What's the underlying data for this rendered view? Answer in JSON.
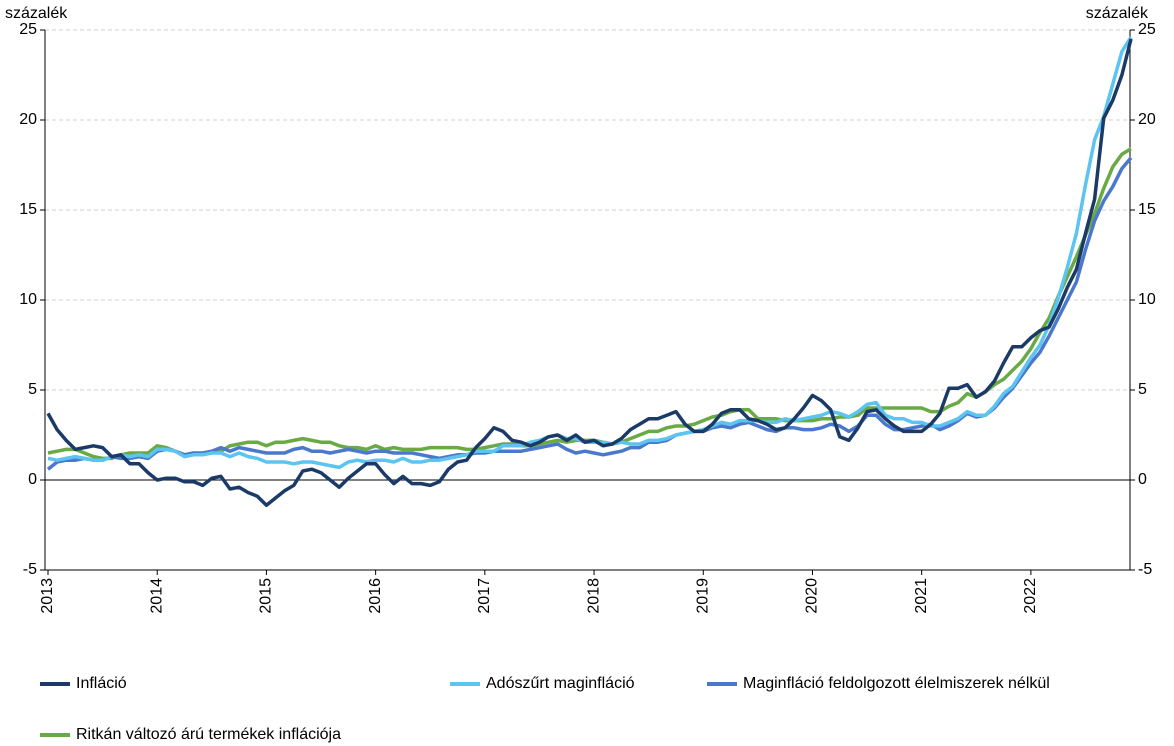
{
  "chart_data": {
    "type": "line",
    "ylabel": "százalék",
    "y2label": "százalék",
    "categories": [
      "2013",
      null,
      null,
      null,
      null,
      null,
      null,
      null,
      null,
      null,
      null,
      null,
      "2014",
      null,
      null,
      null,
      null,
      null,
      null,
      null,
      null,
      null,
      null,
      null,
      "2015",
      null,
      null,
      null,
      null,
      null,
      null,
      null,
      null,
      null,
      null,
      null,
      "2016",
      null,
      null,
      null,
      null,
      null,
      null,
      null,
      null,
      null,
      null,
      null,
      "2017",
      null,
      null,
      null,
      null,
      null,
      null,
      null,
      null,
      null,
      null,
      null,
      "2018",
      null,
      null,
      null,
      null,
      null,
      null,
      null,
      null,
      null,
      null,
      null,
      "2019",
      null,
      null,
      null,
      null,
      null,
      null,
      null,
      null,
      null,
      null,
      null,
      "2020",
      null,
      null,
      null,
      null,
      null,
      null,
      null,
      null,
      null,
      null,
      null,
      "2021",
      null,
      null,
      null,
      null,
      null,
      null,
      null,
      null,
      null,
      null,
      null,
      "2022",
      null,
      null,
      null,
      null,
      null,
      null,
      null,
      null,
      null,
      null,
      null
    ],
    "series": [
      {
        "name": "Infláció",
        "color": "#1b3a67",
        "values": [
          3.7,
          2.8,
          2.2,
          1.7,
          1.8,
          1.9,
          1.8,
          1.3,
          1.4,
          0.9,
          0.9,
          0.4,
          0.0,
          0.1,
          0.1,
          -0.1,
          -0.1,
          -0.3,
          0.1,
          0.2,
          -0.5,
          -0.4,
          -0.7,
          -0.9,
          -1.4,
          -1.0,
          -0.6,
          -0.3,
          0.5,
          0.6,
          0.4,
          0.0,
          -0.4,
          0.1,
          0.5,
          0.9,
          0.9,
          0.3,
          -0.2,
          0.2,
          -0.2,
          -0.2,
          -0.3,
          -0.1,
          0.6,
          1.0,
          1.1,
          1.8,
          2.3,
          2.9,
          2.7,
          2.2,
          2.1,
          1.9,
          2.1,
          2.4,
          2.5,
          2.2,
          2.5,
          2.1,
          2.2,
          1.9,
          2.0,
          2.3,
          2.8,
          3.1,
          3.4,
          3.4,
          3.6,
          3.8,
          3.1,
          2.7,
          2.7,
          3.1,
          3.7,
          3.9,
          3.9,
          3.4,
          3.3,
          3.1,
          2.8,
          2.9,
          3.4,
          4.0,
          4.7,
          4.4,
          3.9,
          2.4,
          2.2,
          2.9,
          3.8,
          3.9,
          3.4,
          3.0,
          2.7,
          2.7,
          2.7,
          3.1,
          3.7,
          5.1,
          5.1,
          5.3,
          4.6,
          4.9,
          5.5,
          6.5,
          7.4,
          7.4,
          7.9,
          8.3,
          8.5,
          9.5,
          10.7,
          11.7,
          13.7,
          15.6,
          20.1,
          21.1,
          22.5,
          24.5
        ]
      },
      {
        "name": "Adószűrt maginfláció",
        "color": "#5bc4f1",
        "values": [
          1.2,
          1.1,
          1.2,
          1.3,
          1.2,
          1.1,
          1.1,
          1.3,
          1.4,
          1.3,
          1.4,
          1.3,
          1.7,
          1.7,
          1.6,
          1.3,
          1.4,
          1.4,
          1.5,
          1.5,
          1.3,
          1.5,
          1.3,
          1.2,
          1.0,
          1.0,
          1.0,
          0.9,
          1.0,
          1.0,
          0.9,
          0.8,
          0.7,
          1.0,
          1.1,
          1.0,
          1.1,
          1.1,
          1.0,
          1.2,
          1.0,
          1.0,
          1.1,
          1.1,
          1.2,
          1.3,
          1.4,
          1.6,
          1.6,
          1.6,
          1.9,
          1.9,
          1.9,
          2.1,
          2.2,
          2.4,
          2.5,
          2.3,
          2.3,
          2.1,
          2.1,
          2.1,
          2.0,
          2.1,
          2.0,
          2.0,
          2.2,
          2.2,
          2.3,
          2.5,
          2.6,
          2.7,
          2.8,
          3.0,
          3.2,
          3.1,
          3.3,
          3.3,
          3.3,
          3.2,
          3.2,
          3.4,
          3.3,
          3.4,
          3.5,
          3.6,
          3.8,
          3.7,
          3.5,
          3.8,
          4.2,
          4.3,
          3.6,
          3.4,
          3.4,
          3.2,
          3.2,
          3.0,
          3.0,
          3.2,
          3.4,
          3.8,
          3.6,
          3.6,
          4.1,
          4.8,
          5.2,
          6.0,
          6.8,
          7.5,
          8.6,
          10.1,
          11.8,
          13.7,
          16.4,
          18.9,
          20.2,
          22.0,
          23.8,
          24.6
        ]
      },
      {
        "name": "Maginfláció feldolgozott élelmiszerek nélkül",
        "color": "#4a78cc",
        "values": [
          0.6,
          1.0,
          1.1,
          1.1,
          1.2,
          1.1,
          1.1,
          1.3,
          1.2,
          1.2,
          1.3,
          1.2,
          1.6,
          1.7,
          1.6,
          1.4,
          1.5,
          1.5,
          1.6,
          1.8,
          1.6,
          1.8,
          1.7,
          1.6,
          1.5,
          1.5,
          1.5,
          1.7,
          1.8,
          1.6,
          1.6,
          1.5,
          1.6,
          1.7,
          1.6,
          1.5,
          1.6,
          1.6,
          1.5,
          1.5,
          1.5,
          1.4,
          1.3,
          1.2,
          1.3,
          1.4,
          1.4,
          1.5,
          1.5,
          1.6,
          1.6,
          1.6,
          1.6,
          1.7,
          1.8,
          1.9,
          2.0,
          1.7,
          1.5,
          1.6,
          1.5,
          1.4,
          1.5,
          1.6,
          1.8,
          1.8,
          2.1,
          2.1,
          2.2,
          2.5,
          2.6,
          2.7,
          2.7,
          2.9,
          3.0,
          2.9,
          3.1,
          3.2,
          3.0,
          2.8,
          2.7,
          2.9,
          2.9,
          2.8,
          2.8,
          2.9,
          3.1,
          3.0,
          2.7,
          3.0,
          3.6,
          3.6,
          3.1,
          2.8,
          2.8,
          2.9,
          3.0,
          3.1,
          2.8,
          3.0,
          3.3,
          3.7,
          3.5,
          3.6,
          4.0,
          4.6,
          5.1,
          5.8,
          6.5,
          7.1,
          8.0,
          9.0,
          10.0,
          11.0,
          12.8,
          14.4,
          15.5,
          16.3,
          17.3,
          17.9
        ]
      },
      {
        "name": "Ritkán változó árú termékek inflációja",
        "color": "#6aaa45",
        "values": [
          1.5,
          1.6,
          1.7,
          1.7,
          1.5,
          1.3,
          1.2,
          1.2,
          1.4,
          1.5,
          1.5,
          1.5,
          1.9,
          1.8,
          1.6,
          1.4,
          1.5,
          1.4,
          1.6,
          1.6,
          1.9,
          2.0,
          2.1,
          2.1,
          1.9,
          2.1,
          2.1,
          2.2,
          2.3,
          2.2,
          2.1,
          2.1,
          1.9,
          1.8,
          1.8,
          1.7,
          1.9,
          1.7,
          1.8,
          1.7,
          1.7,
          1.7,
          1.8,
          1.8,
          1.8,
          1.8,
          1.7,
          1.7,
          1.8,
          1.9,
          2.0,
          2.0,
          1.9,
          1.9,
          2.0,
          2.1,
          2.2,
          2.1,
          2.2,
          2.2,
          2.2,
          2.1,
          2.0,
          2.1,
          2.3,
          2.5,
          2.7,
          2.7,
          2.9,
          3.0,
          3.0,
          3.1,
          3.3,
          3.5,
          3.6,
          3.8,
          3.9,
          3.9,
          3.4,
          3.4,
          3.4,
          3.3,
          3.3,
          3.3,
          3.3,
          3.4,
          3.4,
          3.5,
          3.5,
          3.6,
          4.0,
          4.0,
          4.0,
          4.0,
          4.0,
          4.0,
          4.0,
          3.8,
          3.8,
          4.1,
          4.3,
          4.8,
          4.6,
          4.9,
          5.3,
          5.6,
          6.1,
          6.6,
          7.3,
          8.2,
          9.0,
          10.2,
          11.3,
          12.4,
          13.6,
          14.8,
          16.2,
          17.4,
          18.1,
          18.4
        ]
      }
    ],
    "ylim": [
      -5,
      25
    ],
    "yticks": [
      -5,
      0,
      5,
      10,
      15,
      20,
      25
    ],
    "y2lim": [
      -5,
      25
    ],
    "y2ticks": [
      -5,
      0,
      5,
      10,
      15,
      20,
      25
    ],
    "grid": true
  }
}
